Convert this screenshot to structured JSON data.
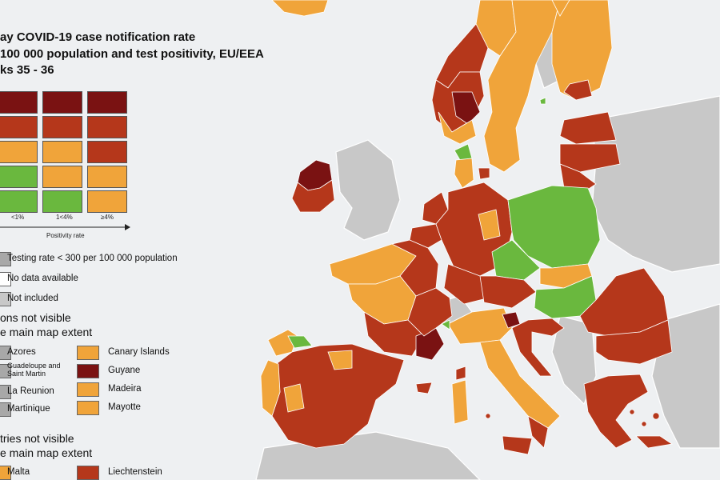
{
  "title": {
    "line1": "ay COVID-19 case notification rate",
    "line2": "100 000 population and test positivity, EU/EEA",
    "line3": "ks 35 - 36"
  },
  "colors": {
    "sea": "#eef0f2",
    "non_eu_land": "#c8c8c8",
    "dark_red": "#7a1212",
    "red": "#b5371b",
    "orange": "#f0a43a",
    "green": "#6ab83e",
    "grey": "#a8a8a8",
    "white": "#ffffff"
  },
  "legend_matrix": {
    "rows": [
      [
        "dark_red",
        "dark_red",
        "dark_red"
      ],
      [
        "red",
        "red",
        "red"
      ],
      [
        "orange",
        "orange",
        "red"
      ],
      [
        "green",
        "orange",
        "orange"
      ],
      [
        "green",
        "green",
        "orange"
      ]
    ],
    "positivity_ticks": [
      "<1%",
      "1<4%",
      "≥4%"
    ],
    "positivity_axis_label": "Positivity rate"
  },
  "status_legend": [
    {
      "label": "Testing rate < 300 per 100 000 population",
      "color": "grey"
    },
    {
      "label": "No data available",
      "color": "white"
    },
    {
      "label": "Not included",
      "color": "non_eu_land"
    }
  ],
  "regions_section": {
    "heading_line1": "ons not visible",
    "heading_line2": "e main map extent",
    "left": [
      {
        "label": "Azores",
        "color": "grey"
      },
      {
        "label": "Guadeloupe and Saint Martin",
        "color": "grey"
      },
      {
        "label": "La Reunion",
        "color": "grey"
      },
      {
        "label": "Martinique",
        "color": "grey"
      }
    ],
    "right": [
      {
        "label": "Canary Islands",
        "color": "orange"
      },
      {
        "label": "Guyane",
        "color": "dark_red"
      },
      {
        "label": "Madeira",
        "color": "orange"
      },
      {
        "label": "Mayotte",
        "color": "orange"
      }
    ]
  },
  "countries_section": {
    "heading_line1": "tries not visible",
    "heading_line2": "e main map extent",
    "items": [
      {
        "label": "Malta",
        "color": "orange"
      },
      {
        "label": "Liechtenstein",
        "color": "red"
      }
    ]
  }
}
